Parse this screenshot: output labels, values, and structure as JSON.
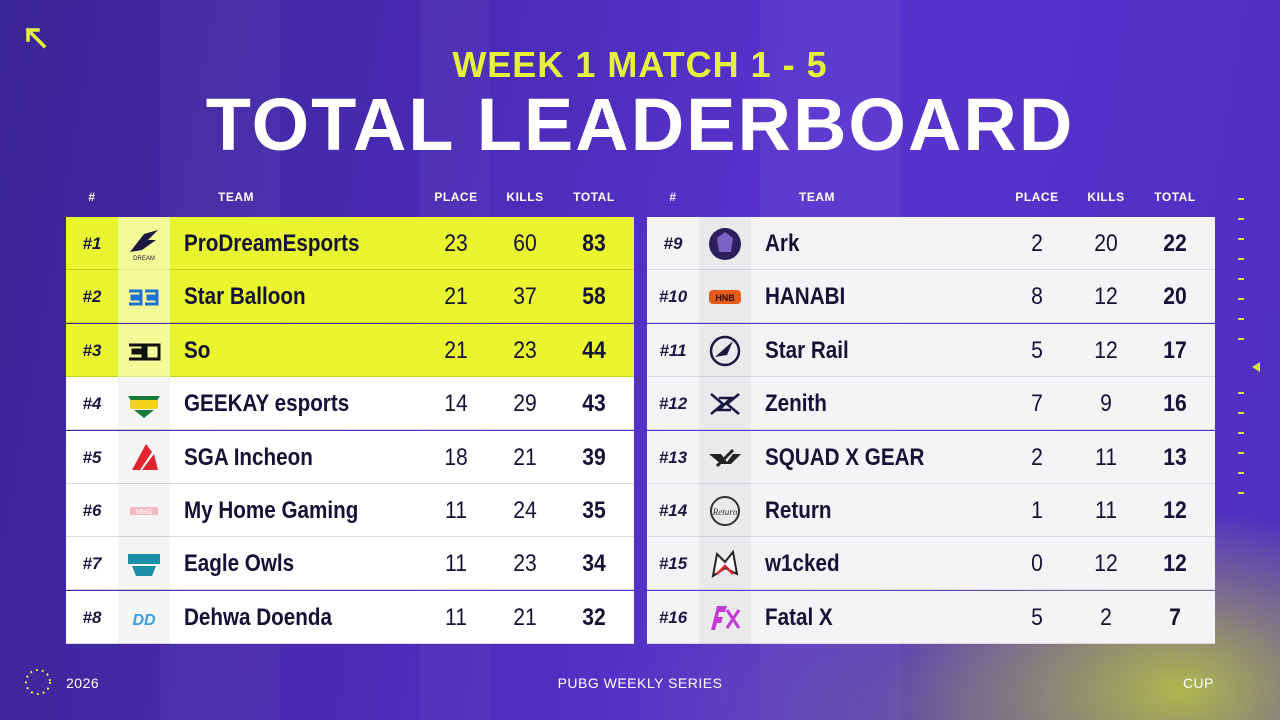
{
  "header": {
    "subtitle": "WEEK 1 MATCH 1 - 5",
    "title": "TOTAL LEADERBOARD"
  },
  "columns": {
    "rank": "#",
    "team": "TEAM",
    "place": "PLACE",
    "kills": "KILLS",
    "total": "TOTAL"
  },
  "left_rows": [
    {
      "rank": "#1",
      "team": "ProDreamEsports",
      "place": "23",
      "kills": "60",
      "total": "83",
      "logo": "prodream-logo",
      "highlight": true
    },
    {
      "rank": "#2",
      "team": "Star Balloon",
      "place": "21",
      "kills": "37",
      "total": "58",
      "logo": "star-balloon-logo",
      "highlight": true
    },
    {
      "rank": "#3",
      "team": "So",
      "place": "21",
      "kills": "23",
      "total": "44",
      "logo": "so-logo",
      "highlight": true
    },
    {
      "rank": "#4",
      "team": "GEEKAY esports",
      "place": "14",
      "kills": "29",
      "total": "43",
      "logo": "geekay-logo",
      "highlight": false
    },
    {
      "rank": "#5",
      "team": "SGA Incheon",
      "place": "18",
      "kills": "21",
      "total": "39",
      "logo": "sga-logo",
      "highlight": false
    },
    {
      "rank": "#6",
      "team": "My Home Gaming",
      "place": "11",
      "kills": "24",
      "total": "35",
      "logo": "my-home-gaming-logo",
      "highlight": false
    },
    {
      "rank": "#7",
      "team": "Eagle Owls",
      "place": "11",
      "kills": "23",
      "total": "34",
      "logo": "eagle-owls-logo",
      "highlight": false
    },
    {
      "rank": "#8",
      "team": "Dehwa Doenda",
      "place": "11",
      "kills": "21",
      "total": "32",
      "logo": "dehwa-doenda-logo",
      "highlight": false
    }
  ],
  "right_rows": [
    {
      "rank": "#9",
      "team": "Ark",
      "place": "2",
      "kills": "20",
      "total": "22",
      "logo": "ark-logo",
      "highlight": false
    },
    {
      "rank": "#10",
      "team": "HANABI",
      "place": "8",
      "kills": "12",
      "total": "20",
      "logo": "hanabi-logo",
      "highlight": false
    },
    {
      "rank": "#11",
      "team": "Star Rail",
      "place": "5",
      "kills": "12",
      "total": "17",
      "logo": "star-rail-logo",
      "highlight": false
    },
    {
      "rank": "#12",
      "team": "Zenith",
      "place": "7",
      "kills": "9",
      "total": "16",
      "logo": "zenith-logo",
      "highlight": false
    },
    {
      "rank": "#13",
      "team": "SQUAD X GEAR",
      "place": "2",
      "kills": "11",
      "total": "13",
      "logo": "squad-x-gear-logo",
      "highlight": false
    },
    {
      "rank": "#14",
      "team": "Return",
      "place": "1",
      "kills": "11",
      "total": "12",
      "logo": "return-logo",
      "highlight": false
    },
    {
      "rank": "#15",
      "team": "w1cked",
      "place": "0",
      "kills": "12",
      "total": "12",
      "logo": "w1cked-logo",
      "highlight": false
    },
    {
      "rank": "#16",
      "team": "Fatal X",
      "place": "5",
      "kills": "2",
      "total": "7",
      "logo": "fatal-x-logo",
      "highlight": false
    }
  ],
  "footer": {
    "year": "2026",
    "series": "PUBG WEEKLY SERIES",
    "cup": "CUP"
  },
  "colors": {
    "highlight": "#e9f52f",
    "accent_yellow": "#e6f23a",
    "background_purple": "#4a2bb6",
    "text_dark": "#151236"
  }
}
